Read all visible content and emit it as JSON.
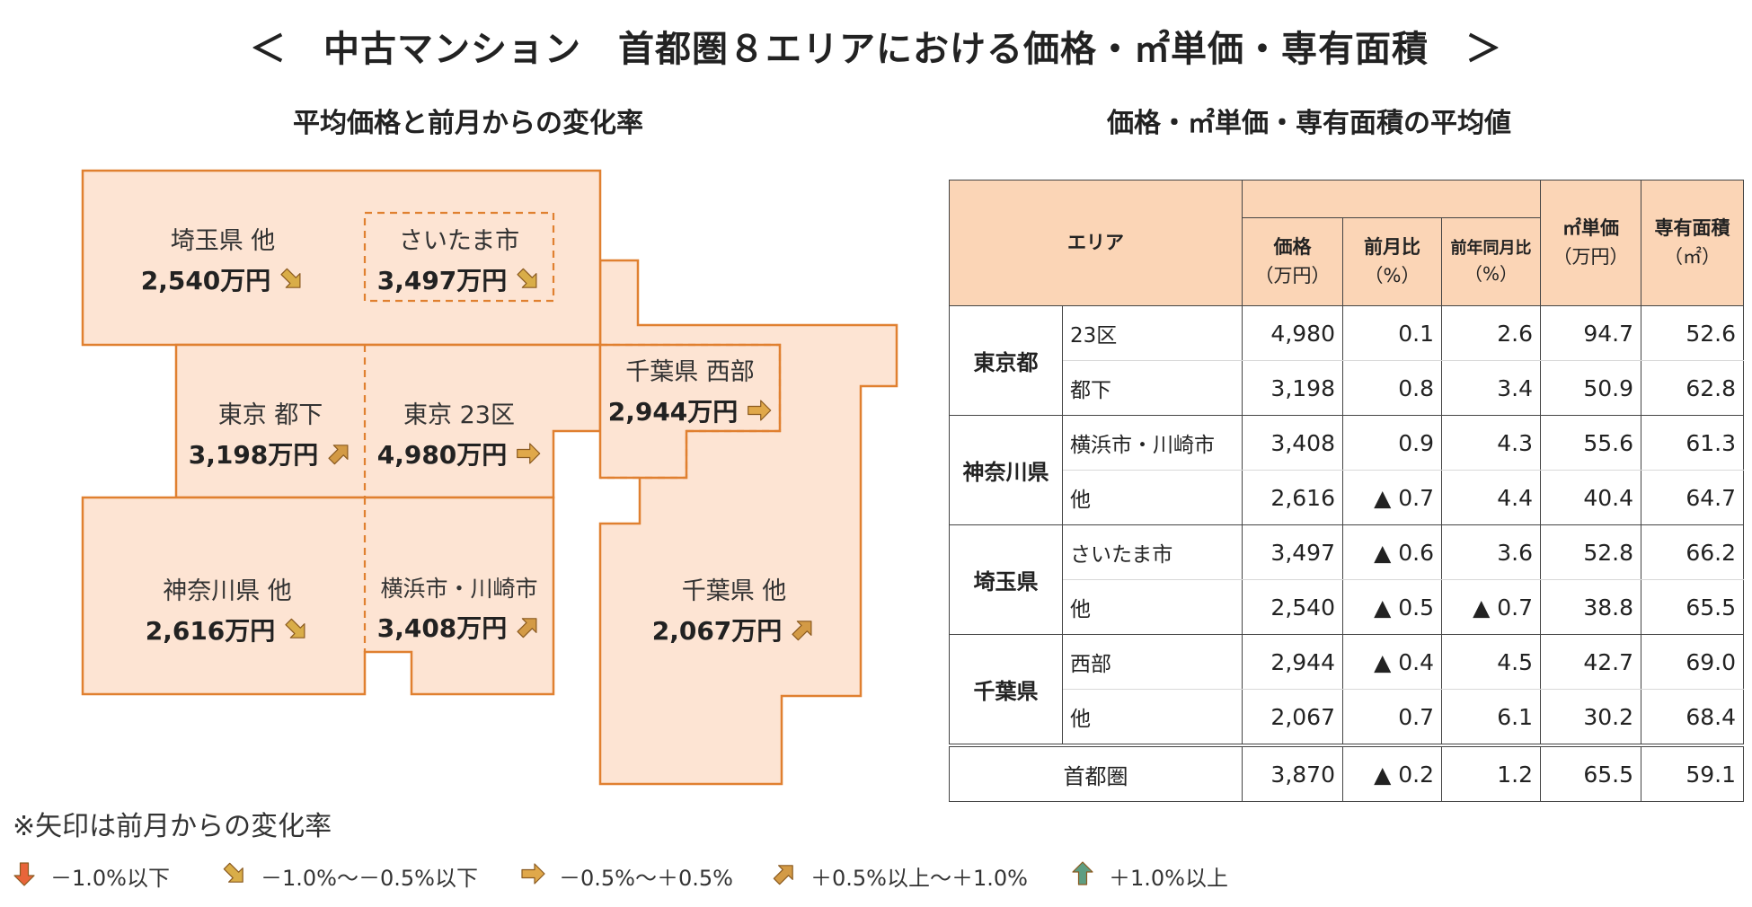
{
  "main_title": "＜　中古マンション　首都圏８エリアにおける価格・㎡単価・専有面積　＞",
  "map_subtitle": "平均価格と前月からの変化率",
  "table_subtitle": "価格・㎡単価・専有面積の平均値",
  "colors": {
    "region_fill": "#fde4d3",
    "region_border": "#e08030",
    "table_header_fill": "#fbd5b6",
    "arrow_down": "#e8653a",
    "arrow_down_slight": "#d9ad48",
    "arrow_flat": "#e0a84a",
    "arrow_up_slight": "#d39a45",
    "arrow_up": "#5e9e82"
  },
  "map": {
    "areas": [
      {
        "id": "saitama-other",
        "name": "埼玉県 他",
        "price": "2,540万円",
        "trend": "down-slight"
      },
      {
        "id": "saitama-city",
        "name": "さいたま市",
        "price": "3,497万円",
        "trend": "down-slight"
      },
      {
        "id": "chiba-west",
        "name": "千葉県 西部",
        "price": "2,944万円",
        "trend": "flat"
      },
      {
        "id": "tokyo-outer",
        "name": "東京 都下",
        "price": "3,198万円",
        "trend": "up-slight"
      },
      {
        "id": "tokyo-23",
        "name": "東京 23区",
        "price": "4,980万円",
        "trend": "flat"
      },
      {
        "id": "kanagawa-other",
        "name": "神奈川県 他",
        "price": "2,616万円",
        "trend": "down-slight"
      },
      {
        "id": "yokohama-kawasaki",
        "name": "横浜市・川崎市",
        "price": "3,408万円",
        "trend": "up-slight"
      },
      {
        "id": "chiba-other",
        "name": "千葉県 他",
        "price": "2,067万円",
        "trend": "up-slight"
      }
    ]
  },
  "table": {
    "headers": {
      "area": "エリア",
      "price": "価格",
      "price_unit": "（万円）",
      "mom": "前月比",
      "mom_unit": "（%）",
      "yoy": "前年同月比",
      "yoy_unit": "（%）",
      "unit_price": "㎡単価",
      "unit_price_unit": "（万円）",
      "area_size": "専有面積",
      "area_size_unit": "（㎡）"
    },
    "groups": [
      {
        "pref": "東京都",
        "rows": [
          {
            "name": "23区",
            "price": "4,980",
            "mom": "0.1",
            "yoy": "2.6",
            "unit_price": "94.7",
            "area": "52.6"
          },
          {
            "name": "都下",
            "price": "3,198",
            "mom": "0.8",
            "yoy": "3.4",
            "unit_price": "50.9",
            "area": "62.8"
          }
        ]
      },
      {
        "pref": "神奈川県",
        "rows": [
          {
            "name": "横浜市・川崎市",
            "price": "3,408",
            "mom": "0.9",
            "yoy": "4.3",
            "unit_price": "55.6",
            "area": "61.3"
          },
          {
            "name": "他",
            "price": "2,616",
            "mom": "▲ 0.7",
            "yoy": "4.4",
            "unit_price": "40.4",
            "area": "64.7"
          }
        ]
      },
      {
        "pref": "埼玉県",
        "rows": [
          {
            "name": "さいたま市",
            "price": "3,497",
            "mom": "▲ 0.6",
            "yoy": "3.6",
            "unit_price": "52.8",
            "area": "66.2"
          },
          {
            "name": "他",
            "price": "2,540",
            "mom": "▲ 0.5",
            "yoy": "▲ 0.7",
            "unit_price": "38.8",
            "area": "65.5"
          }
        ]
      },
      {
        "pref": "千葉県",
        "rows": [
          {
            "name": "西部",
            "price": "2,944",
            "mom": "▲ 0.4",
            "yoy": "4.5",
            "unit_price": "42.7",
            "area": "69.0"
          },
          {
            "name": "他",
            "price": "2,067",
            "mom": "0.7",
            "yoy": "6.1",
            "unit_price": "30.2",
            "area": "68.4"
          }
        ]
      }
    ],
    "total": {
      "name": "首都圏",
      "price": "3,870",
      "mom": "▲ 0.2",
      "yoy": "1.2",
      "unit_price": "65.5",
      "area": "59.1"
    }
  },
  "note": "※矢印は前月からの変化率",
  "legend": [
    {
      "trend": "down",
      "label": "－1.0%以下"
    },
    {
      "trend": "down-slight",
      "label": "－1.0%～－0.5%以下"
    },
    {
      "trend": "flat",
      "label": "－0.5%～＋0.5%"
    },
    {
      "trend": "up-slight",
      "label": "＋0.5%以上～＋1.0%"
    },
    {
      "trend": "up",
      "label": "＋1.0%以上"
    }
  ],
  "chart_data": {
    "type": "table",
    "title": "＜　中古マンション　首都圏８エリアにおける価格・㎡単価・専有面積　＞",
    "columns": [
      "価格（万円）",
      "前月比（%）",
      "前年同月比（%）",
      "㎡単価（万円）",
      "専有面積（㎡）"
    ],
    "rows": [
      {
        "pref": "東京都",
        "area": "23区",
        "values": [
          4980,
          0.1,
          2.6,
          94.7,
          52.6
        ]
      },
      {
        "pref": "東京都",
        "area": "都下",
        "values": [
          3198,
          0.8,
          3.4,
          50.9,
          62.8
        ]
      },
      {
        "pref": "神奈川県",
        "area": "横浜市・川崎市",
        "values": [
          3408,
          0.9,
          4.3,
          55.6,
          61.3
        ]
      },
      {
        "pref": "神奈川県",
        "area": "他",
        "values": [
          2616,
          -0.7,
          4.4,
          40.4,
          64.7
        ]
      },
      {
        "pref": "埼玉県",
        "area": "さいたま市",
        "values": [
          3497,
          -0.6,
          3.6,
          52.8,
          66.2
        ]
      },
      {
        "pref": "埼玉県",
        "area": "他",
        "values": [
          2540,
          -0.5,
          -0.7,
          38.8,
          65.5
        ]
      },
      {
        "pref": "千葉県",
        "area": "西部",
        "values": [
          2944,
          -0.4,
          4.5,
          42.7,
          69.0
        ]
      },
      {
        "pref": "千葉県",
        "area": "他",
        "values": [
          2067,
          0.7,
          6.1,
          30.2,
          68.4
        ]
      },
      {
        "pref": "",
        "area": "首都圏",
        "values": [
          3870,
          -0.2,
          1.2,
          65.5,
          59.1
        ]
      }
    ]
  }
}
